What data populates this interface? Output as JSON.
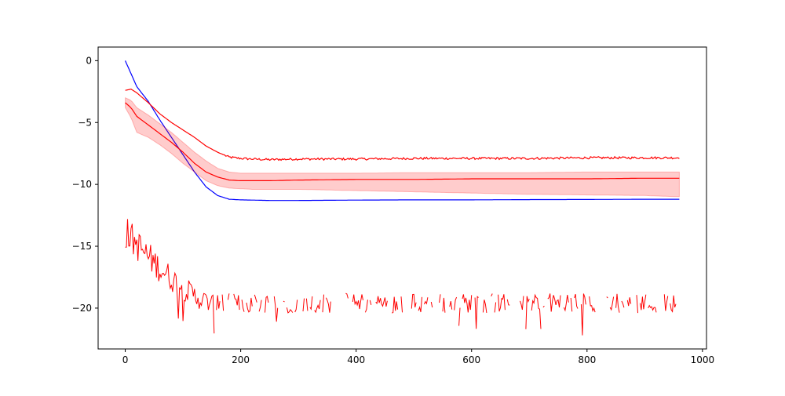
{
  "chart_data": {
    "type": "line",
    "title": "",
    "xlabel": "",
    "ylabel": "",
    "xlim": [
      -47,
      1007
    ],
    "ylim": [
      -23.3,
      1.1
    ],
    "grid": false,
    "xticks": [
      0,
      200,
      400,
      600,
      800,
      1000
    ],
    "xtick_labels": [
      "0",
      "200",
      "400",
      "600",
      "800",
      "1000"
    ],
    "yticks": [
      0,
      -5,
      -10,
      -15,
      -20
    ],
    "ytick_labels": [
      "0",
      "−5",
      "−10",
      "−15",
      "−20"
    ],
    "colors": {
      "blue": "#0000ff",
      "red": "#ff0000",
      "band": "#ff0000"
    },
    "series": [
      {
        "color": "#0000ff",
        "style": "solid",
        "x": [
          0,
          20,
          40,
          60,
          80,
          100,
          120,
          140,
          160,
          180,
          200,
          250,
          300,
          400,
          500,
          600,
          700,
          800,
          900,
          960
        ],
        "y": [
          0.0,
          -2.1,
          -3.3,
          -4.8,
          -6.2,
          -7.6,
          -9.0,
          -10.2,
          -10.9,
          -11.2,
          -11.25,
          -11.3,
          -11.3,
          -11.27,
          -11.25,
          -11.25,
          -11.23,
          -11.22,
          -11.2,
          -11.2
        ]
      },
      {
        "color": "#ff0000",
        "style": "solid",
        "x": [
          0,
          10,
          20,
          40,
          60,
          80,
          100,
          120,
          140,
          160,
          180,
          200,
          220,
          250,
          300,
          400,
          500,
          600,
          700,
          800,
          900,
          960
        ],
        "y": [
          -2.4,
          -2.3,
          -2.6,
          -3.4,
          -4.3,
          -5.0,
          -5.6,
          -6.2,
          -6.9,
          -7.4,
          -7.8,
          -7.9,
          -7.95,
          -8.0,
          -7.95,
          -7.95,
          -7.9,
          -7.9,
          -7.9,
          -7.85,
          -7.85,
          -7.85
        ]
      },
      {
        "color": "#ff0000",
        "style": "mean-with-band",
        "x": [
          0,
          10,
          20,
          40,
          60,
          80,
          100,
          120,
          140,
          160,
          180,
          200,
          220,
          250,
          300,
          400,
          500,
          600,
          700,
          800,
          900,
          960
        ],
        "y": [
          -3.4,
          -3.8,
          -4.5,
          -5.2,
          -5.9,
          -6.6,
          -7.4,
          -8.3,
          -9.0,
          -9.4,
          -9.65,
          -9.7,
          -9.7,
          -9.7,
          -9.65,
          -9.6,
          -9.6,
          -9.55,
          -9.55,
          -9.55,
          -9.5,
          -9.5
        ],
        "upper": [
          -3.0,
          -3.2,
          -3.8,
          -4.4,
          -5.1,
          -5.8,
          -6.6,
          -7.4,
          -8.1,
          -8.7,
          -9.0,
          -9.1,
          -9.1,
          -9.1,
          -9.1,
          -9.1,
          -9.05,
          -9.05,
          -9.05,
          -9.0,
          -9.0,
          -9.0
        ],
        "lower": [
          -3.8,
          -4.6,
          -5.8,
          -6.2,
          -6.8,
          -7.5,
          -8.3,
          -9.0,
          -9.7,
          -10.1,
          -10.3,
          -10.35,
          -10.4,
          -10.4,
          -10.4,
          -10.5,
          -10.6,
          -10.7,
          -10.8,
          -10.85,
          -10.9,
          -11.0
        ]
      },
      {
        "color": "#ff0000",
        "style": "noisy-with-gaps",
        "x_start": 0,
        "x_end": 960,
        "start_level": -13.8,
        "settled_level": -19.6,
        "settle_at": 150,
        "min_value": -22.2,
        "max_value": -12.4
      }
    ]
  }
}
